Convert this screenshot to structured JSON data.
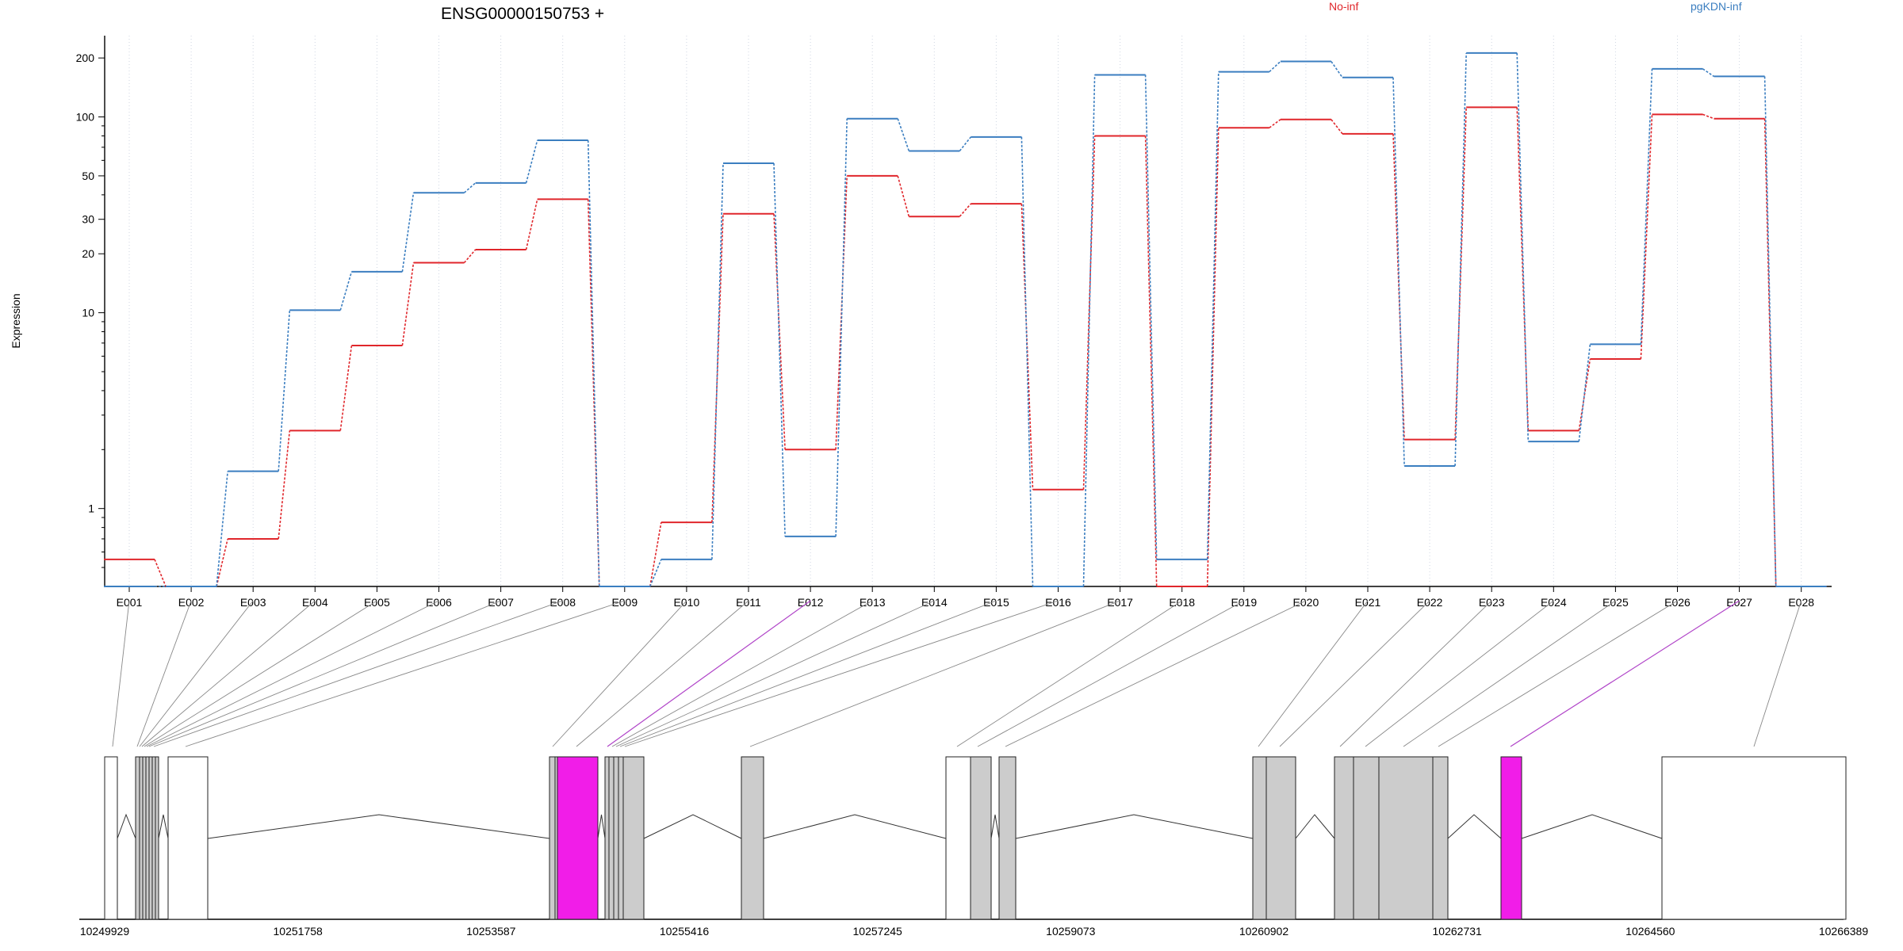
{
  "header": {
    "title": "ENSG00000150753 +",
    "legend": [
      {
        "label": "No-inf",
        "color": "#e0262b"
      },
      {
        "label": "pgKDN-inf",
        "color": "#3b7ec0"
      }
    ]
  },
  "chart_data": {
    "type": "line",
    "title": "ENSG00000150753 +",
    "xlabel": "",
    "ylabel": "Expression",
    "yscale": "log",
    "y_ticks": [
      1,
      10,
      20,
      30,
      50,
      100,
      200
    ],
    "ylim": [
      0.4,
      260
    ],
    "grid": "vertical dotted lines at each exon",
    "legend_position": "top-right",
    "categories": [
      "E001",
      "E002",
      "E003",
      "E004",
      "E005",
      "E006",
      "E007",
      "E008",
      "E009",
      "E010",
      "E011",
      "E012",
      "E013",
      "E014",
      "E015",
      "E016",
      "E017",
      "E018",
      "E019",
      "E020",
      "E021",
      "E022",
      "E023",
      "E024",
      "E025",
      "E026",
      "E027",
      "E028"
    ],
    "series": [
      {
        "name": "No-inf",
        "color": "#e0262b",
        "values": [
          0.55,
          0.4,
          0.7,
          2.5,
          6.8,
          18,
          21,
          38,
          0.4,
          0.85,
          32,
          2.0,
          50,
          31,
          36,
          1.25,
          80,
          0.4,
          88,
          97,
          82,
          2.25,
          112,
          2.5,
          5.8,
          103,
          98,
          0.4
        ]
      },
      {
        "name": "pgKDN-inf",
        "color": "#3b7ec0",
        "values": [
          0.4,
          0.4,
          1.55,
          10.3,
          16.2,
          41,
          46,
          76,
          0.4,
          0.55,
          58,
          0.72,
          98,
          67,
          79,
          0.4,
          164,
          0.55,
          170,
          192,
          159,
          1.65,
          212,
          2.2,
          6.9,
          176,
          161,
          0.4
        ]
      }
    ],
    "gene_model": {
      "coordinate_ticks": [
        "10249929",
        "10251758",
        "10253587",
        "10255416",
        "10257245",
        "10259073",
        "10260902",
        "10262731",
        "10264560",
        "10266389"
      ],
      "highlighted_exons": [
        "E012",
        "E027"
      ],
      "highlight_color": "#f11de8"
    }
  }
}
